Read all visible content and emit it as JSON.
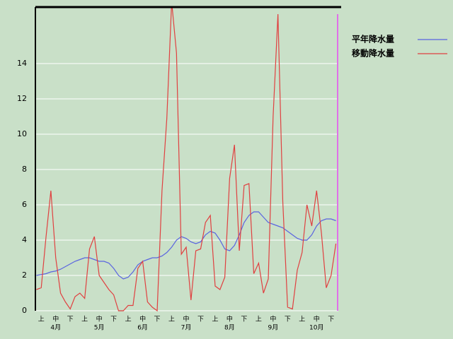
{
  "chart_data": {
    "type": "line",
    "categories": [
      null,
      "上",
      null,
      null,
      "中",
      null,
      null,
      "下",
      null,
      null,
      "上",
      null,
      null,
      "中",
      null,
      null,
      "下",
      null,
      null,
      "上",
      null,
      null,
      "中",
      null,
      null,
      "下",
      null,
      null,
      "上",
      null,
      null,
      "中",
      null,
      null,
      "下",
      null,
      null,
      "上",
      null,
      null,
      "中",
      null,
      null,
      "下",
      null,
      null,
      "上",
      null,
      null,
      "中",
      null,
      null,
      "下",
      null,
      null,
      "上",
      null,
      null,
      "中",
      null,
      null,
      "下",
      null
    ],
    "months": [
      "4月",
      "5月",
      "6月",
      "7月",
      "8月",
      "9月",
      "10月"
    ],
    "series": [
      {
        "name": "平年降水量",
        "color": "#5a64e0",
        "values": [
          2.0,
          2.05,
          2.1,
          2.2,
          2.25,
          2.35,
          2.5,
          2.65,
          2.8,
          2.9,
          3.0,
          3.0,
          2.9,
          2.8,
          2.8,
          2.7,
          2.4,
          2.0,
          1.8,
          1.9,
          2.2,
          2.6,
          2.8,
          2.9,
          3.0,
          3.0,
          3.1,
          3.3,
          3.6,
          4.0,
          4.2,
          4.1,
          3.9,
          3.8,
          3.9,
          4.3,
          4.5,
          4.4,
          4.0,
          3.5,
          3.4,
          3.7,
          4.3,
          5.0,
          5.4,
          5.6,
          5.6,
          5.3,
          5.0,
          4.9,
          4.8,
          4.7,
          4.5,
          4.3,
          4.1,
          4.0,
          4.0,
          4.3,
          4.8,
          5.1,
          5.2,
          5.2,
          5.1
        ]
      },
      {
        "name": "移動降水量",
        "color": "#e04040",
        "values": [
          1.2,
          1.3,
          4.2,
          6.8,
          3.0,
          1.0,
          0.5,
          0.1,
          0.8,
          1.0,
          0.7,
          3.5,
          4.2,
          2.0,
          1.6,
          1.2,
          0.9,
          0.0,
          0.0,
          0.3,
          0.3,
          2.4,
          2.8,
          0.5,
          0.2,
          0.0,
          6.8,
          10.9,
          17.5,
          14.6,
          3.2,
          3.6,
          0.6,
          3.4,
          3.5,
          5.0,
          5.4,
          1.4,
          1.2,
          1.9,
          7.5,
          9.4,
          3.4,
          7.1,
          7.2,
          2.1,
          2.7,
          1.0,
          1.8,
          11.0,
          16.8,
          6.2,
          0.2,
          0.1,
          2.3,
          3.3,
          6.0,
          4.8,
          6.8,
          4.4,
          1.3,
          2.0,
          3.8
        ]
      }
    ],
    "ylim": [
      0,
      17.2
    ],
    "yticks": [
      0,
      2,
      4,
      6,
      8,
      10,
      12,
      14
    ],
    "grid": true,
    "legend": "top-right"
  }
}
